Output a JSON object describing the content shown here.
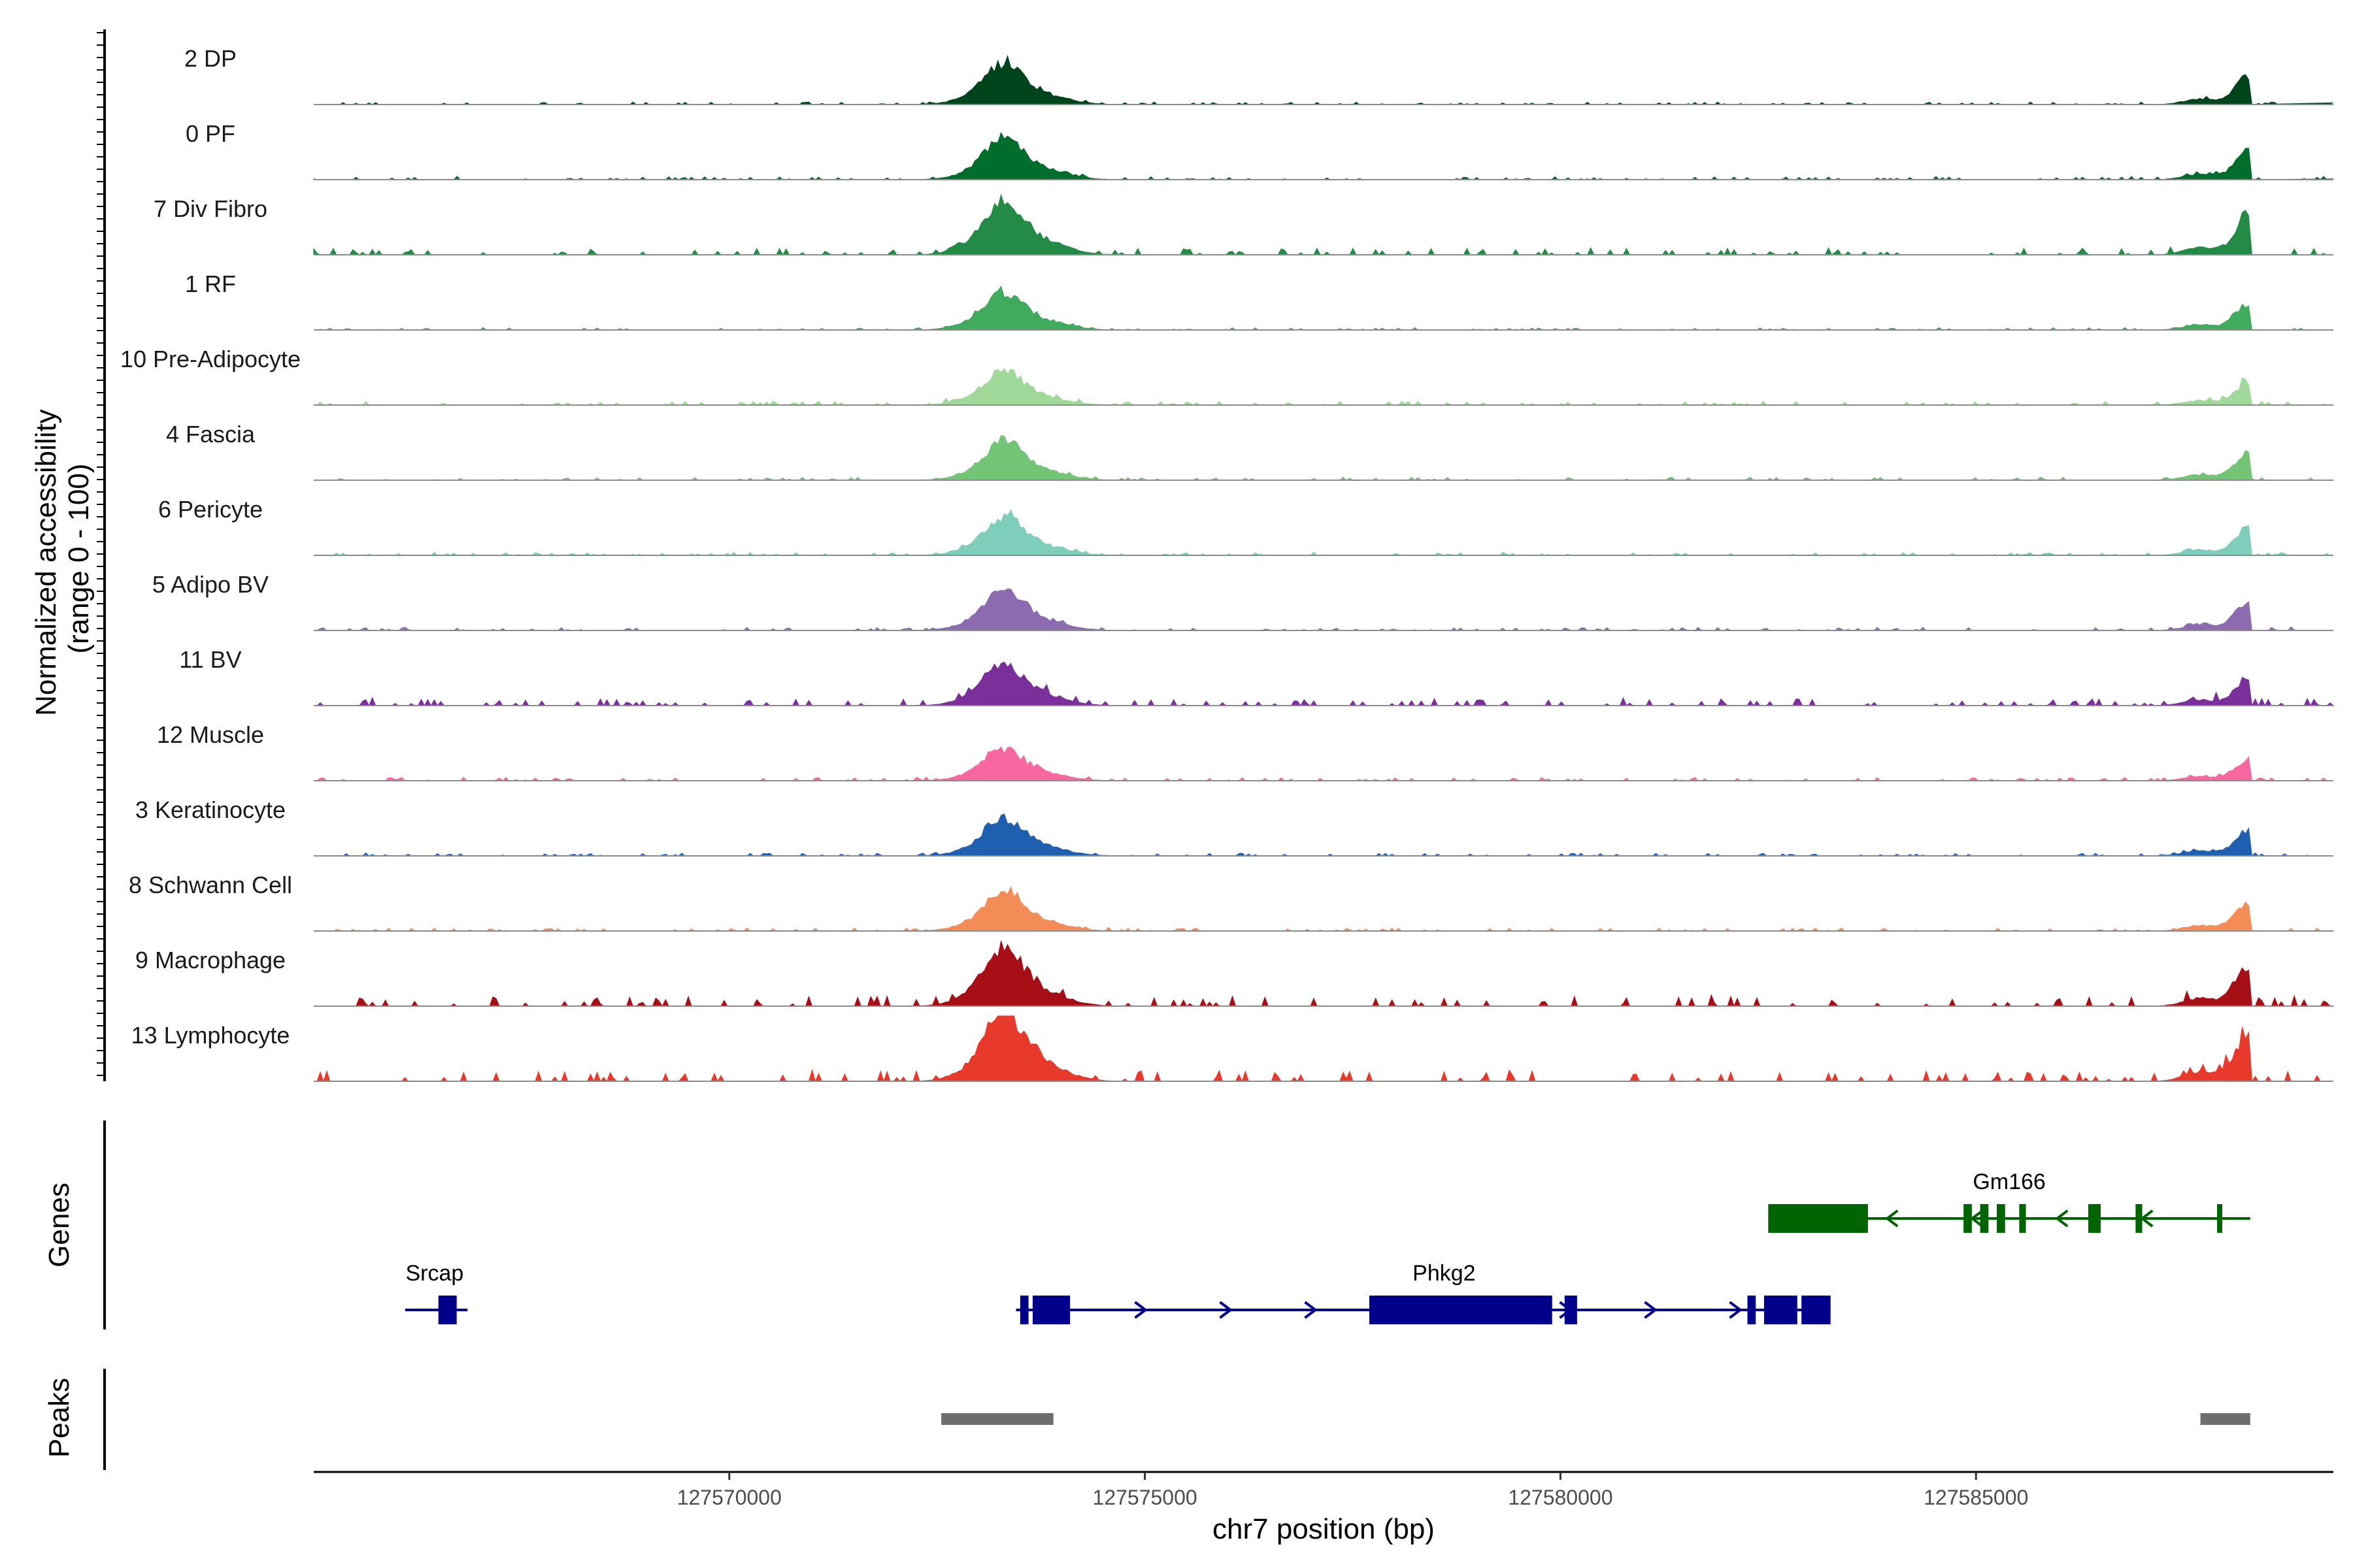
{
  "chart_data": {
    "type": "area",
    "ylabel": "Normalized accessibility\n(range 0 - 100)",
    "xlabel": "chr7 position (bp)",
    "xlim": [
      127565000,
      127589300
    ],
    "xticks": [
      127570000,
      127575000,
      127580000,
      127585000
    ],
    "tracks": [
      {
        "name": "2 DP",
        "color": "#00441b",
        "scale": 0.72,
        "bg": 0.04
      },
      {
        "name": "0 PF",
        "color": "#006d2c",
        "scale": 0.72,
        "bg": 0.05
      },
      {
        "name": "7 Div Fibro",
        "color": "#238b45",
        "scale": 0.95,
        "bg": 0.08
      },
      {
        "name": "1 RF",
        "color": "#41ab5d",
        "scale": 0.65,
        "bg": 0.04
      },
      {
        "name": "10 Pre-Adipocyte",
        "color": "#a1d99b",
        "scale": 0.58,
        "bg": 0.08
      },
      {
        "name": "4 Fascia",
        "color": "#74c476",
        "scale": 0.68,
        "bg": 0.05
      },
      {
        "name": "6 Pericyte",
        "color": "#7fcdbb",
        "scale": 0.68,
        "bg": 0.05
      },
      {
        "name": "5 Adipo BV",
        "color": "#8c6bb1",
        "scale": 0.72,
        "bg": 0.05
      },
      {
        "name": "11 BV",
        "color": "#7b2f9b",
        "scale": 0.72,
        "bg": 0.12
      },
      {
        "name": "12 Muscle",
        "color": "#f768a1",
        "scale": 0.55,
        "bg": 0.07
      },
      {
        "name": "3 Keratinocyte",
        "color": "#1f5fb0",
        "scale": 0.65,
        "bg": 0.05
      },
      {
        "name": "8 Schwann Cell",
        "color": "#f48c57",
        "scale": 0.7,
        "bg": 0.05
      },
      {
        "name": "9 Macrophage",
        "color": "#a50f15",
        "scale": 1.0,
        "bg": 0.12
      },
      {
        "name": "13 Lymphocyte",
        "color": "#e83a2c",
        "scale": 1.2,
        "bg": 0.1
      }
    ],
    "genes": {
      "title": "Genes",
      "items": [
        {
          "name": "Gm166",
          "strand": "-",
          "color": "#006400",
          "start": 127582500,
          "end": 127588300,
          "exons": [
            [
              127582500,
              127583700
            ],
            [
              127584850,
              127584950
            ],
            [
              127585050,
              127585150
            ],
            [
              127585250,
              127585350
            ],
            [
              127585520,
              127585600
            ],
            [
              127586350,
              127586500
            ],
            [
              127586920,
              127587000
            ],
            [
              127587900,
              127587930
            ]
          ]
        },
        {
          "name": "Srcap",
          "strand": "+",
          "color": "#00008b",
          "start": 127566100,
          "end": 127566850,
          "exons": [
            [
              127566500,
              127566720
            ]
          ]
        },
        {
          "name": "Phkg2",
          "strand": "+",
          "color": "#00008b",
          "start": 127573450,
          "end": 127583250,
          "exons": [
            [
              127573500,
              127573600
            ],
            [
              127573650,
              127574100
            ],
            [
              127577700,
              127579900
            ],
            [
              127580050,
              127580200
            ],
            [
              127582250,
              127582350
            ],
            [
              127582450,
              127582850
            ],
            [
              127582900,
              127583250
            ]
          ]
        }
      ]
    },
    "peaks": {
      "title": "Peaks",
      "color": "#6e6e6e",
      "regions": [
        [
          127572550,
          127573900
        ],
        [
          127587700,
          127588300
        ]
      ]
    }
  }
}
